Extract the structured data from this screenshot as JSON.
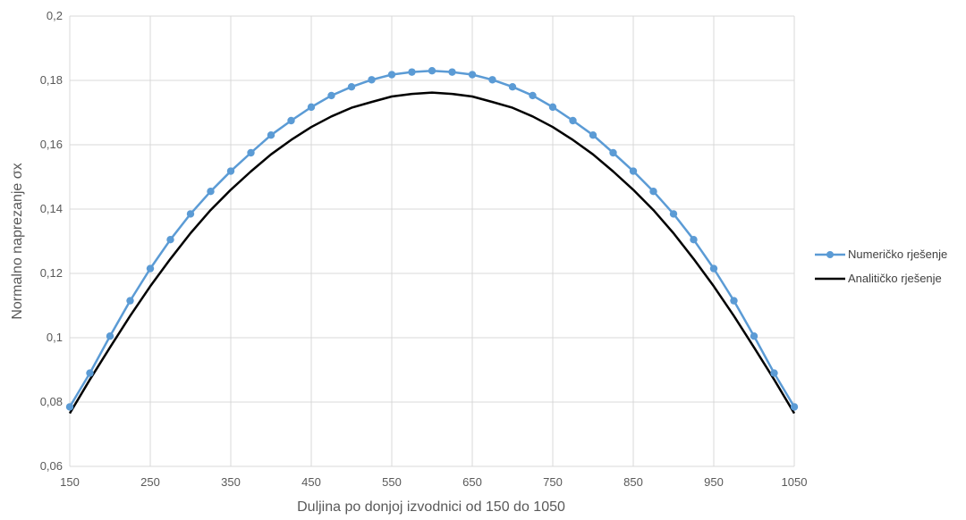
{
  "chart_data": {
    "type": "line",
    "title": "",
    "xlabel": "Duljina po donjoj izvodnici od 150 do 1050",
    "ylabel": "Normalno naprezanje σx",
    "xlim": [
      150,
      1050
    ],
    "ylim": [
      0.06,
      0.2
    ],
    "x_ticks": [
      "150",
      "250",
      "350",
      "450",
      "550",
      "650",
      "750",
      "850",
      "950",
      "1050"
    ],
    "y_ticks": [
      "0,06",
      "0,08",
      "0,1",
      "0,12",
      "0,14",
      "0,16",
      "0,18",
      "0,2"
    ],
    "grid": true,
    "legend_position": "right",
    "x": [
      150,
      175,
      200,
      225,
      250,
      275,
      300,
      325,
      350,
      375,
      400,
      425,
      450,
      475,
      500,
      525,
      550,
      575,
      600,
      625,
      650,
      675,
      700,
      725,
      750,
      775,
      800,
      825,
      850,
      875,
      900,
      925,
      950,
      975,
      1000,
      1025,
      1050
    ],
    "series": [
      {
        "name": "Numeričko rješenje",
        "color": "#5b9bd5",
        "markers": true,
        "values": [
          0.0785,
          0.089,
          0.1005,
          0.1115,
          0.1215,
          0.1305,
          0.1385,
          0.1455,
          0.1518,
          0.1575,
          0.163,
          0.1675,
          0.1717,
          0.1753,
          0.178,
          0.1802,
          0.1818,
          0.1826,
          0.183,
          0.1826,
          0.1818,
          0.1802,
          0.178,
          0.1753,
          0.1717,
          0.1675,
          0.163,
          0.1575,
          0.1518,
          0.1455,
          0.1385,
          0.1305,
          0.1215,
          0.1115,
          0.1005,
          0.089,
          0.0785
        ]
      },
      {
        "name": "Analitičko rješenje",
        "color": "#000000",
        "markers": false,
        "values": [
          0.0765,
          0.087,
          0.097,
          0.1068,
          0.116,
          0.1245,
          0.1325,
          0.1397,
          0.146,
          0.1517,
          0.157,
          0.1615,
          0.1655,
          0.1688,
          0.1715,
          0.1733,
          0.175,
          0.1758,
          0.1762,
          0.1758,
          0.175,
          0.1733,
          0.1715,
          0.1688,
          0.1655,
          0.1615,
          0.157,
          0.1517,
          0.146,
          0.1397,
          0.1325,
          0.1245,
          0.116,
          0.1068,
          0.097,
          0.087,
          0.0765
        ]
      }
    ]
  }
}
